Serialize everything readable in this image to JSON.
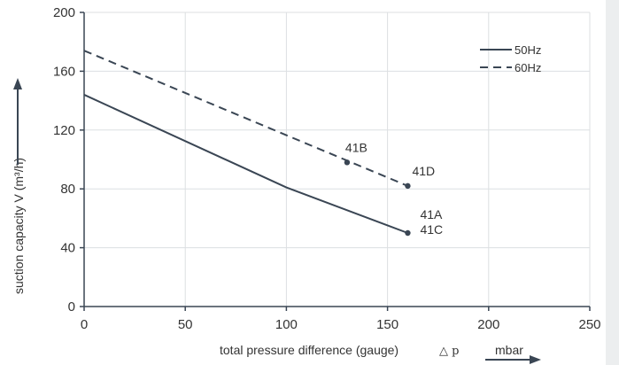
{
  "chart_data": {
    "type": "line",
    "title": "",
    "xlabel": "total pressure difference (gauge)",
    "xlabel_symbol": "△ p",
    "xunit": "mbar",
    "ylabel": "suction capacity V (m³/h)",
    "xlim": [
      0,
      250
    ],
    "ylim": [
      0,
      200
    ],
    "xticks": [
      0,
      50,
      100,
      150,
      200,
      250
    ],
    "yticks": [
      0,
      40,
      80,
      120,
      160,
      200
    ],
    "grid": true,
    "legend_position": "top-right",
    "series": [
      {
        "name": "50Hz",
        "style": "solid",
        "color": "#3a4654",
        "x": [
          0,
          100,
          160
        ],
        "y": [
          144,
          81,
          50
        ]
      },
      {
        "name": "60Hz",
        "style": "dashed",
        "color": "#3a4654",
        "x": [
          0,
          160
        ],
        "y": [
          174,
          82
        ]
      }
    ],
    "annotations": [
      {
        "label": "41B",
        "x": 130,
        "y": 98
      },
      {
        "label": "41D",
        "x": 160,
        "y": 82
      },
      {
        "label": "41A",
        "x": 160,
        "y": 50
      },
      {
        "label": "41C",
        "x": 160,
        "y": 50
      }
    ]
  }
}
